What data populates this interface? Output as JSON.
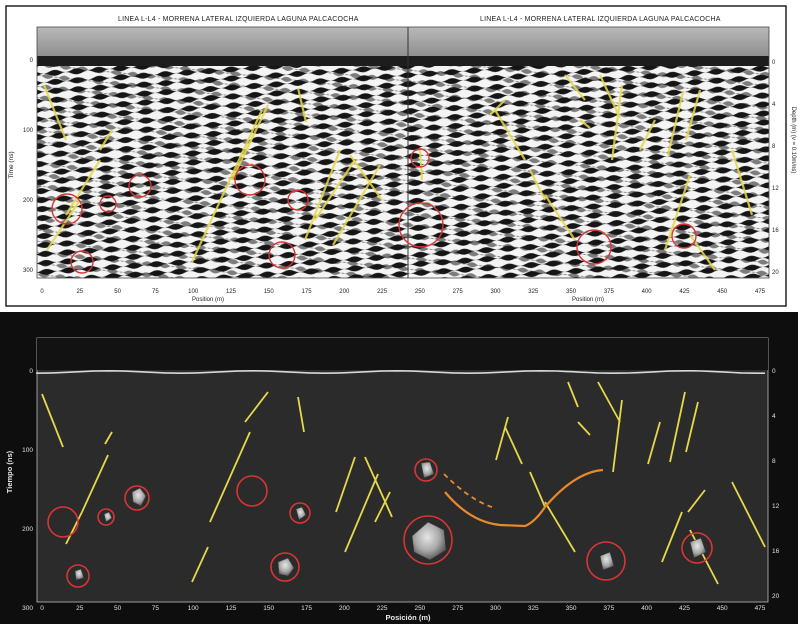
{
  "top_panel": {
    "titles": [
      "LINEA L-L4 - MORRENA LATERAL IZQUIERDA LAGUNA PALCACOCHA",
      "LINEA L-L4 - MORRENA LATERAL IZQUIERDA LAGUNA PALCACOCHA"
    ],
    "y_label": "Time (ns)",
    "right_label": "Depth (m) (v = 0.10m/ns)",
    "x_label_left": "Position (m)",
    "x_label_right": "Position (m)",
    "y_ticks": [
      "0",
      "100",
      "200",
      "300"
    ],
    "right_ticks": [
      "0",
      "4",
      "8",
      "12",
      "16",
      "20"
    ],
    "x_ticks": [
      "0",
      "25",
      "50",
      "75",
      "100",
      "125",
      "150",
      "175",
      "200",
      "225",
      "250",
      "275",
      "300",
      "325",
      "350",
      "375",
      "400",
      "425",
      "450",
      "475"
    ]
  },
  "bottom_panel": {
    "y_label": "Tiempo (ns)",
    "x_label": "Posición (m)",
    "y_ticks": [
      "0",
      "100",
      "200",
      "300"
    ],
    "right_ticks": [
      "0",
      "4",
      "8",
      "12",
      "16",
      "20"
    ],
    "x_ticks": [
      "0",
      "25",
      "50",
      "75",
      "100",
      "125",
      "150",
      "175",
      "200",
      "225",
      "250",
      "275",
      "300",
      "325",
      "350",
      "375",
      "400",
      "425",
      "450",
      "475"
    ]
  },
  "colors": {
    "fracture_line": "#e6d84a",
    "circle": "#d93535",
    "orange_line": "#e8892b",
    "panel_bg": "#282828",
    "frame_bg": "#0e0e0e"
  }
}
